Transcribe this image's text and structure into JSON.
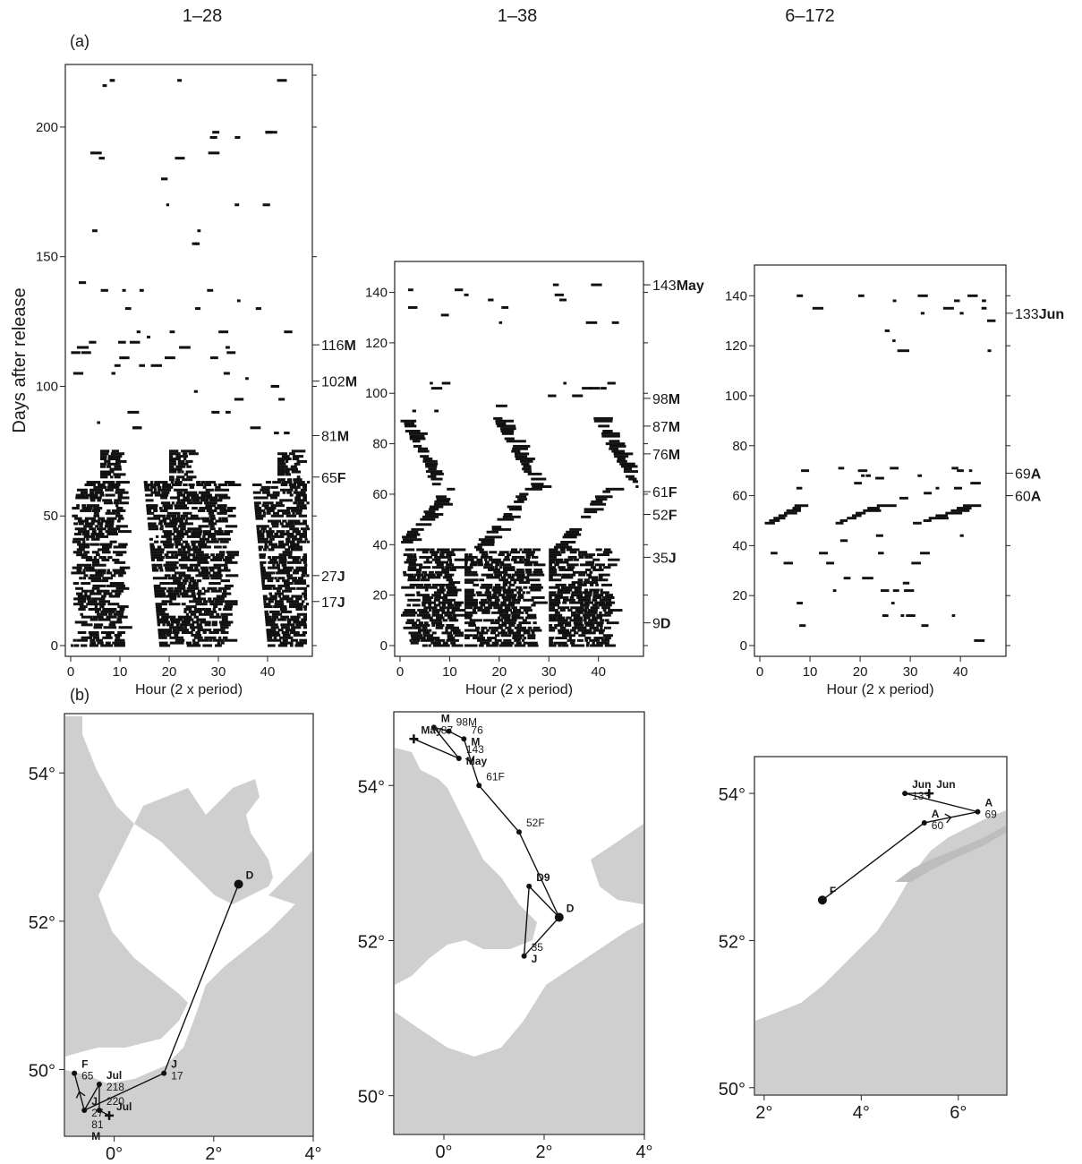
{
  "figure": {
    "panel_a_label": "(a)",
    "panel_b_label": "(b)"
  },
  "chart_data": [
    {
      "type": "heatmap",
      "title": "1–28",
      "xlabel": "Hour (2 x period)",
      "ylabel": "Days after release",
      "xlim": [
        0,
        48
      ],
      "ylim": [
        0,
        220
      ],
      "x_ticks": [
        0,
        10,
        20,
        30,
        40
      ],
      "y_ticks": [
        0,
        50,
        100,
        150,
        200
      ],
      "right_ticks": [
        0,
        50,
        100,
        150,
        200,
        220
      ],
      "event_labels": [
        {
          "day": 116,
          "num": "116",
          "month": "M"
        },
        {
          "day": 102,
          "num": "102",
          "month": "M"
        },
        {
          "day": 81,
          "num": "81",
          "month": "M"
        },
        {
          "day": 65,
          "num": "65",
          "month": "F"
        },
        {
          "day": 27,
          "num": "27",
          "month": "J"
        },
        {
          "day": 17,
          "num": "17",
          "month": "J"
        }
      ],
      "activity": {
        "dense_bands": [
          {
            "from_day": 0,
            "to_day": 63,
            "centers": [
              5,
              25,
              44
            ],
            "half_widths": [
              5,
              7,
              4
            ],
            "drift": -0.05
          },
          {
            "from_day": 64,
            "to_day": 75,
            "centers": [
              8,
              22,
              44
            ],
            "half_widths": [
              2,
              2,
              2
            ],
            "drift": 0
          }
        ],
        "sparse_days": [
          82,
          84,
          86,
          90,
          95,
          98,
          100,
          103,
          105,
          108,
          111,
          113,
          115,
          117,
          119,
          121,
          130,
          133,
          137,
          140,
          155,
          160,
          170,
          180,
          188,
          190,
          196,
          198,
          216,
          218
        ]
      }
    },
    {
      "type": "heatmap",
      "title": "1–38",
      "xlabel": "Hour (2 x period)",
      "ylabel": "",
      "xlim": [
        0,
        48
      ],
      "ylim": [
        0,
        148
      ],
      "x_ticks": [
        0,
        10,
        20,
        30,
        40
      ],
      "y_ticks": [
        0,
        20,
        40,
        60,
        80,
        100,
        120,
        140
      ],
      "right_ticks": [
        0,
        20,
        40,
        60,
        80,
        100,
        120,
        140,
        143
      ],
      "event_labels": [
        {
          "day": 143,
          "num": "143",
          "month": "May"
        },
        {
          "day": 98,
          "num": "98",
          "month": "M"
        },
        {
          "day": 87,
          "num": "87",
          "month": "M"
        },
        {
          "day": 76,
          "num": "76",
          "month": "M"
        },
        {
          "day": 61,
          "num": "61",
          "month": "F"
        },
        {
          "day": 52,
          "num": "52",
          "month": "F"
        },
        {
          "day": 35,
          "num": "35",
          "month": "J"
        },
        {
          "day": 9,
          "num": "9",
          "month": "D"
        }
      ],
      "activity": {
        "dense_bands": [
          {
            "from_day": 0,
            "to_day": 38,
            "centers": [
              5,
              20,
              36
            ],
            "half_widths": [
              6,
              7,
              6
            ],
            "drift": 0
          }
        ],
        "drift_segments": [
          {
            "from_day": 39,
            "to_day": 62,
            "x_start": 0,
            "x_end": 10
          },
          {
            "from_day": 39,
            "to_day": 62,
            "x_start": 16,
            "x_end": 26
          },
          {
            "from_day": 39,
            "to_day": 62,
            "x_start": 32,
            "x_end": 42
          },
          {
            "from_day": 63,
            "to_day": 90,
            "x_start": 8,
            "x_end": 1
          },
          {
            "from_day": 63,
            "to_day": 90,
            "x_start": 28,
            "x_end": 20
          },
          {
            "from_day": 63,
            "to_day": 90,
            "x_start": 48,
            "x_end": 40
          }
        ],
        "sparse_days": [
          93,
          95,
          99,
          102,
          104,
          128,
          131,
          134,
          137,
          139,
          141,
          143
        ]
      }
    },
    {
      "type": "heatmap",
      "title": "6–172",
      "xlabel": "Hour (2 x period)",
      "ylabel": "",
      "xlim": [
        0,
        48
      ],
      "ylim": [
        0,
        148
      ],
      "x_ticks": [
        0,
        10,
        20,
        30,
        40
      ],
      "y_ticks": [
        0,
        20,
        40,
        60,
        80,
        100,
        120,
        140
      ],
      "right_ticks": [
        0,
        20,
        40,
        60,
        80,
        100,
        120,
        140
      ],
      "event_labels": [
        {
          "day": 133,
          "num": "133",
          "month": "Jun"
        },
        {
          "day": 69,
          "num": "69",
          "month": "A"
        },
        {
          "day": 60,
          "num": "60",
          "month": "A"
        }
      ],
      "activity": {
        "drift_segments": [
          {
            "from_day": 49,
            "to_day": 56,
            "x_start": 2,
            "x_end": 8
          },
          {
            "from_day": 49,
            "to_day": 56,
            "x_start": 16,
            "x_end": 24
          },
          {
            "from_day": 49,
            "to_day": 56,
            "x_start": 32,
            "x_end": 42
          }
        ],
        "sparse_days": [
          2,
          8,
          12,
          17,
          22,
          25,
          27,
          33,
          37,
          42,
          44,
          59,
          61,
          63,
          65,
          67,
          68,
          70,
          71,
          118,
          122,
          126,
          130,
          133,
          135,
          138,
          140
        ]
      }
    }
  ],
  "maps": [
    {
      "lat_ticks": [
        {
          "v": 50,
          "label": "50°"
        },
        {
          "v": 52,
          "label": "52°"
        },
        {
          "v": 54,
          "label": "54°"
        }
      ],
      "lon_ticks": [
        {
          "v": 0,
          "label": "0°"
        },
        {
          "v": 2,
          "label": "2°"
        },
        {
          "v": 4,
          "label": "4°"
        }
      ],
      "points": [
        {
          "lon": 2.5,
          "lat": 52.5,
          "labels": [
            "D"
          ],
          "big": true
        },
        {
          "lon": 1.0,
          "lat": 49.95,
          "labels": [
            "J",
            "17"
          ]
        },
        {
          "lon": -0.8,
          "lat": 49.95,
          "labels": [
            "F",
            "65"
          ]
        },
        {
          "lon": -0.3,
          "lat": 49.8,
          "labels": [
            "Jul",
            "218"
          ]
        },
        {
          "lon": -0.6,
          "lat": 49.45,
          "labels": [
            "J",
            "27",
            "81",
            "M"
          ]
        },
        {
          "lon": -0.3,
          "lat": 49.45,
          "labels": [
            "220"
          ]
        },
        {
          "lon": -0.1,
          "lat": 49.38,
          "labels": [
            "Jul"
          ],
          "cross": true
        }
      ]
    },
    {
      "lat_ticks": [
        {
          "v": 50,
          "label": "50°"
        },
        {
          "v": 52,
          "label": "52°"
        },
        {
          "v": 54,
          "label": "54°"
        }
      ],
      "lon_ticks": [
        {
          "v": 0,
          "label": "0°"
        },
        {
          "v": 2,
          "label": "2°"
        },
        {
          "v": 4,
          "label": "4°"
        }
      ],
      "points": [
        {
          "lon": -0.2,
          "lat": 54.75,
          "labels": [
            "M",
            "87"
          ]
        },
        {
          "lon": 0.1,
          "lat": 54.7,
          "labels": [
            "98M"
          ]
        },
        {
          "lon": 0.4,
          "lat": 54.6,
          "labels": [
            "76",
            "M"
          ]
        },
        {
          "lon": -0.6,
          "lat": 54.6,
          "labels": [
            "May"
          ],
          "cross": true
        },
        {
          "lon": 0.3,
          "lat": 54.35,
          "labels": [
            "143",
            "May"
          ]
        },
        {
          "lon": 0.7,
          "lat": 54.0,
          "labels": [
            "61F"
          ]
        },
        {
          "lon": 1.5,
          "lat": 53.4,
          "labels": [
            "52F"
          ]
        },
        {
          "lon": 1.7,
          "lat": 52.7,
          "labels": [
            "D9"
          ]
        },
        {
          "lon": 2.3,
          "lat": 52.3,
          "labels": [
            "D"
          ],
          "big": true
        },
        {
          "lon": 1.6,
          "lat": 51.8,
          "labels": [
            "35",
            "J"
          ]
        }
      ]
    },
    {
      "lat_ticks": [
        {
          "v": 50,
          "label": "50°"
        },
        {
          "v": 52,
          "label": "52°"
        },
        {
          "v": 54,
          "label": "54°"
        }
      ],
      "lon_ticks": [
        {
          "v": 2,
          "label": "2°"
        },
        {
          "v": 4,
          "label": "4°"
        },
        {
          "v": 6,
          "label": "6°"
        }
      ],
      "points": [
        {
          "lon": 3.2,
          "lat": 52.55,
          "labels": [
            "F"
          ],
          "big": true
        },
        {
          "lon": 5.3,
          "lat": 53.6,
          "labels": [
            "A",
            "60"
          ]
        },
        {
          "lon": 6.4,
          "lat": 53.75,
          "labels": [
            "A",
            "69"
          ]
        },
        {
          "lon": 4.9,
          "lat": 54.0,
          "labels": [
            "Jun",
            "133"
          ]
        },
        {
          "lon": 5.4,
          "lat": 54.0,
          "labels": [
            "Jun"
          ],
          "cross": true
        }
      ]
    }
  ]
}
